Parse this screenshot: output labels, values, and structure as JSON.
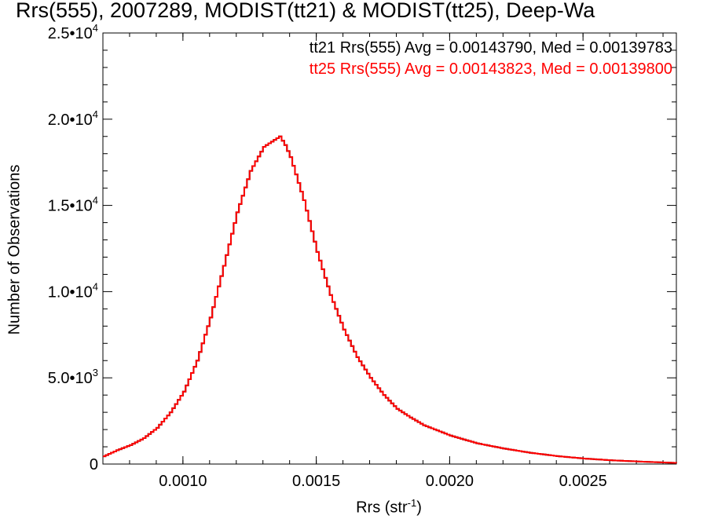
{
  "chart_data": {
    "type": "line",
    "title": "Rrs(555), 2007289, MODIST(tt21) & MODIST(tt25), Deep-Wa",
    "xlabel": "Rrs (str",
    "xlabel_exponent": "-1",
    "xlabel_close": ")",
    "ylabel": "Number of Observations",
    "xlim": [
      0.0007,
      0.00285
    ],
    "ylim": [
      0,
      25000
    ],
    "x_ticks": [
      {
        "value": 0.001,
        "label": "0.0010"
      },
      {
        "value": 0.0015,
        "label": "0.0015"
      },
      {
        "value": 0.002,
        "label": "0.0020"
      },
      {
        "value": 0.0025,
        "label": "0.0025"
      }
    ],
    "y_ticks": [
      {
        "value": 0,
        "base": "0",
        "exp": ""
      },
      {
        "value": 5000,
        "base": "5.0•10",
        "exp": "3"
      },
      {
        "value": 10000,
        "base": "1.0•10",
        "exp": "4"
      },
      {
        "value": 15000,
        "base": "1.5•10",
        "exp": "4"
      },
      {
        "value": 20000,
        "base": "2.0•10",
        "exp": "4"
      },
      {
        "value": 25000,
        "base": "2.5•10",
        "exp": "4"
      }
    ],
    "grid": false,
    "legend_placement": "top-right",
    "annotations": [
      {
        "text": "tt21 Rrs(555) Avg = 0.00143790, Med = 0.00139783",
        "color": "#000000"
      },
      {
        "text": "tt25 Rrs(555) Avg = 0.00143823, Med = 0.00139800",
        "color": "#ff0000"
      }
    ],
    "series": [
      {
        "color": "#000000",
        "step": true,
        "x": [
          0.0007,
          0.00075,
          0.0008,
          0.00085,
          0.0009,
          0.00095,
          0.001,
          0.00105,
          0.0011,
          0.00115,
          0.0012,
          0.00125,
          0.0013,
          0.00133,
          0.00136,
          0.00138,
          0.0014,
          0.00145,
          0.0015,
          0.00155,
          0.0016,
          0.00165,
          0.0017,
          0.00175,
          0.0018,
          0.00185,
          0.0019,
          0.002,
          0.0021,
          0.0022,
          0.0023,
          0.0024,
          0.0025,
          0.0026,
          0.0027,
          0.0028,
          0.00285
        ],
        "y": [
          450,
          800,
          1100,
          1500,
          2100,
          3000,
          4200,
          6000,
          8500,
          11500,
          14600,
          17000,
          18400,
          18700,
          19000,
          18500,
          17800,
          15300,
          12300,
          9800,
          7800,
          6200,
          5000,
          4000,
          3200,
          2700,
          2250,
          1650,
          1200,
          900,
          650,
          460,
          320,
          220,
          150,
          90,
          60
        ]
      },
      {
        "color": "#ff0000",
        "step": true,
        "x": [
          0.0007,
          0.00075,
          0.0008,
          0.00085,
          0.0009,
          0.00095,
          0.001,
          0.00105,
          0.0011,
          0.00115,
          0.0012,
          0.00125,
          0.0013,
          0.00133,
          0.00136,
          0.00138,
          0.0014,
          0.00145,
          0.0015,
          0.00155,
          0.0016,
          0.00165,
          0.0017,
          0.00175,
          0.0018,
          0.00185,
          0.0019,
          0.002,
          0.0021,
          0.0022,
          0.0023,
          0.0024,
          0.0025,
          0.0026,
          0.0027,
          0.0028,
          0.00285
        ],
        "y": [
          450,
          800,
          1100,
          1500,
          2100,
          3000,
          4200,
          6000,
          8500,
          11500,
          14600,
          17000,
          18400,
          18700,
          19000,
          18500,
          17800,
          15300,
          12300,
          9800,
          7800,
          6200,
          5000,
          4000,
          3200,
          2700,
          2250,
          1650,
          1200,
          900,
          650,
          460,
          320,
          220,
          150,
          90,
          60
        ]
      }
    ]
  }
}
